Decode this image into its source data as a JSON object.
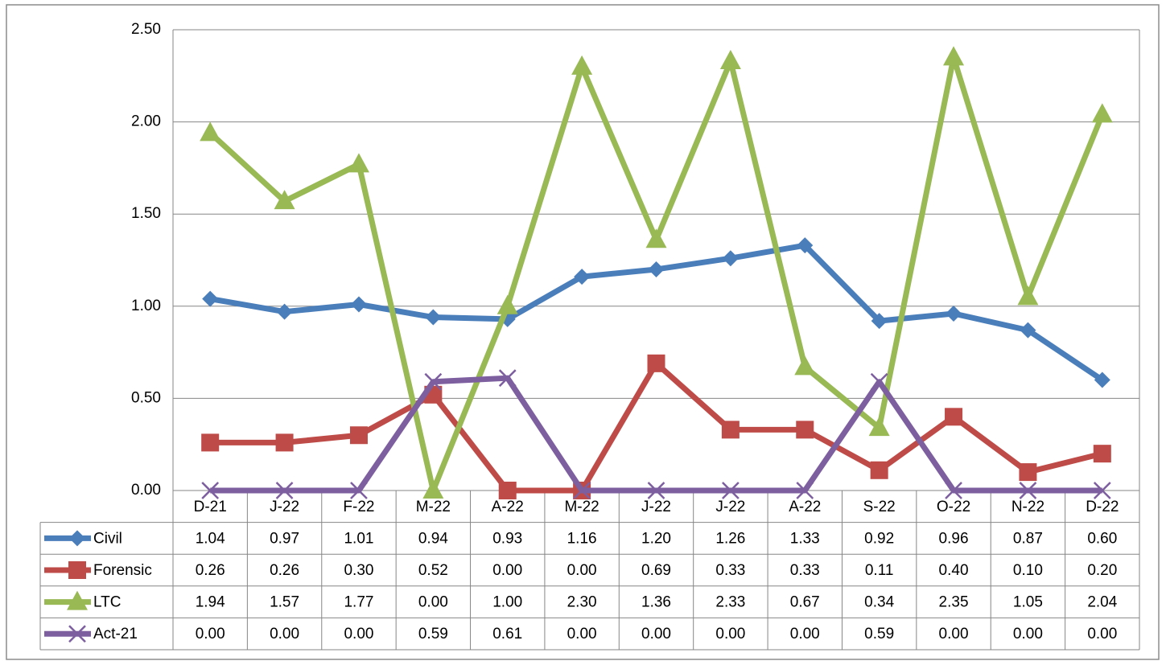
{
  "chart_data": {
    "type": "line",
    "categories": [
      "D-21",
      "J-22",
      "F-22",
      "M-22",
      "A-22",
      "M-22",
      "J-22",
      "J-22",
      "A-22",
      "S-22",
      "O-22",
      "N-22",
      "D-22"
    ],
    "series": [
      {
        "name": "Civil",
        "color": "#4a7ebb",
        "marker": "diamond",
        "values": [
          1.04,
          0.97,
          1.01,
          0.94,
          0.93,
          1.16,
          1.2,
          1.26,
          1.33,
          0.92,
          0.96,
          0.87,
          0.6
        ],
        "value_labels": [
          "1.04",
          "0.97",
          "1.01",
          "0.94",
          "0.93",
          "1.16",
          "1.20",
          "1.26",
          "1.33",
          "0.92",
          "0.96",
          "0.87",
          "0.60"
        ]
      },
      {
        "name": "Forensic",
        "color": "#be4b48",
        "marker": "square",
        "values": [
          0.26,
          0.26,
          0.3,
          0.52,
          0,
          0,
          0.69,
          0.33,
          0.33,
          0.11,
          0.4,
          0.1,
          0.2
        ],
        "value_labels": [
          "0.26",
          "0.26",
          "0.30",
          "0.52",
          "0.00",
          "0.00",
          "0.69",
          "0.33",
          "0.33",
          "0.11",
          "0.40",
          "0.10",
          "0.20"
        ]
      },
      {
        "name": "LTC",
        "color": "#98b954",
        "marker": "triangle",
        "values": [
          1.94,
          1.57,
          1.77,
          0,
          1,
          2.3,
          1.36,
          2.33,
          0.67,
          0.34,
          2.35,
          1.05,
          2.04
        ],
        "value_labels": [
          "1.94",
          "1.57",
          "1.77",
          "0.00",
          "1.00",
          "2.30",
          "1.36",
          "2.33",
          "0.67",
          "0.34",
          "2.35",
          "1.05",
          "2.04"
        ]
      },
      {
        "name": "Act-21",
        "color": "#7d5fa0",
        "marker": "x",
        "values": [
          0,
          0,
          0,
          0.59,
          0.61,
          0,
          0,
          0,
          0,
          0.59,
          0,
          0,
          0
        ],
        "value_labels": [
          "0.00",
          "0.00",
          "0.00",
          "0.59",
          "0.61",
          "0.00",
          "0.00",
          "0.00",
          "0.00",
          "0.59",
          "0.00",
          "0.00",
          "0.00"
        ]
      }
    ],
    "ylim": [
      0,
      2.5
    ],
    "yticks": [
      {
        "value": 0,
        "label": "0.00"
      },
      {
        "value": 0.5,
        "label": "0.50"
      },
      {
        "value": 1,
        "label": "1.00"
      },
      {
        "value": 1.5,
        "label": "1.50"
      },
      {
        "value": 2,
        "label": "2.00"
      },
      {
        "value": 2.5,
        "label": "2.50"
      }
    ],
    "grid": true
  }
}
